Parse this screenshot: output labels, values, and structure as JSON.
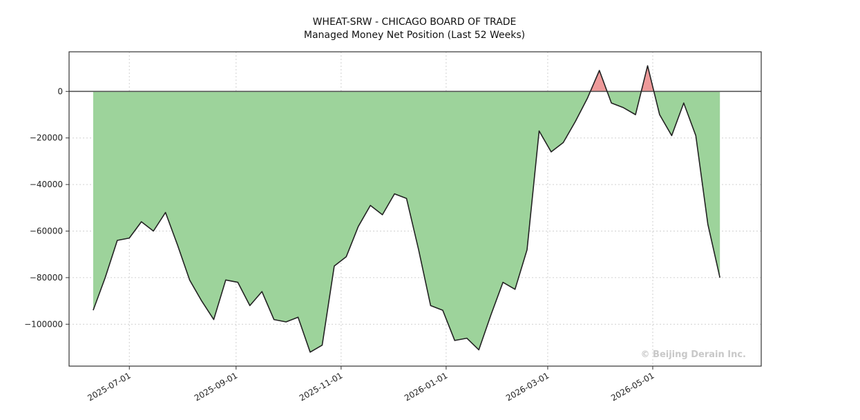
{
  "chart_data": {
    "type": "area",
    "title": "WHEAT-SRW - CHICAGO BOARD OF TRADE",
    "subtitle": "Managed Money Net Position (Last 52 Weeks)",
    "xlabel": "",
    "ylabel": "",
    "x_tick_labels": [
      "2025-07-01",
      "2025-09-01",
      "2025-11-01",
      "2026-01-01",
      "2026-03-01",
      "2026-05-01"
    ],
    "y_tick_labels": [
      "0",
      "−20000",
      "−40000",
      "−60000",
      "−80000",
      "−100000"
    ],
    "y_ticks": [
      0,
      -20000,
      -40000,
      -60000,
      -80000,
      -100000
    ],
    "ylim": [
      -118000,
      17000
    ],
    "xlim": [
      "2025-05-27",
      "2026-07-03"
    ],
    "grid": true,
    "baseline": 0,
    "watermark": "© Beijing Derain Inc.",
    "colors": {
      "negative_fill": "#9dd39b",
      "positive_fill": "#ee9a9a",
      "line": "#222222",
      "zero_line": "#555555"
    },
    "series": [
      {
        "x": [
          "2025-06-10",
          "2025-06-17",
          "2025-06-24",
          "2025-07-01",
          "2025-07-08",
          "2025-07-15",
          "2025-07-22",
          "2025-07-29",
          "2025-08-05",
          "2025-08-12",
          "2025-08-19",
          "2025-08-26",
          "2025-09-02",
          "2025-09-09",
          "2025-09-16",
          "2025-09-23",
          "2025-09-30",
          "2025-10-07",
          "2025-10-14",
          "2025-10-21",
          "2025-10-28",
          "2025-11-04",
          "2025-11-11",
          "2025-11-18",
          "2025-11-25",
          "2025-12-02",
          "2025-12-09",
          "2025-12-16",
          "2025-12-23",
          "2025-12-30",
          "2026-01-06",
          "2026-01-13",
          "2026-01-20",
          "2026-01-27",
          "2026-02-03",
          "2026-02-10",
          "2026-02-17",
          "2026-02-24",
          "2026-03-03",
          "2026-03-10",
          "2026-03-17",
          "2026-03-24",
          "2026-03-31",
          "2026-04-07",
          "2026-04-14",
          "2026-04-21",
          "2026-04-28",
          "2026-05-05",
          "2026-05-12",
          "2026-05-19",
          "2026-05-26",
          "2026-06-02",
          "2026-06-09"
        ],
        "values": [
          -94000,
          -80000,
          -64000,
          -63000,
          -56000,
          -60000,
          -52000,
          -66000,
          -81000,
          -90000,
          -98000,
          -81000,
          -82000,
          -92000,
          -86000,
          -98000,
          -99000,
          -97000,
          -112000,
          -109000,
          -75000,
          -71000,
          -58000,
          -49000,
          -53000,
          -44000,
          -46000,
          -68000,
          -92000,
          -94000,
          -107000,
          -106000,
          -111000,
          -96000,
          -82000,
          -85000,
          -68000,
          -17000,
          -26000,
          -22000,
          -13000,
          -3000,
          9000,
          -5000,
          -7000,
          -10000,
          11000,
          -10000,
          -19000,
          -5000,
          -19000,
          -57000,
          -80000
        ]
      }
    ]
  }
}
